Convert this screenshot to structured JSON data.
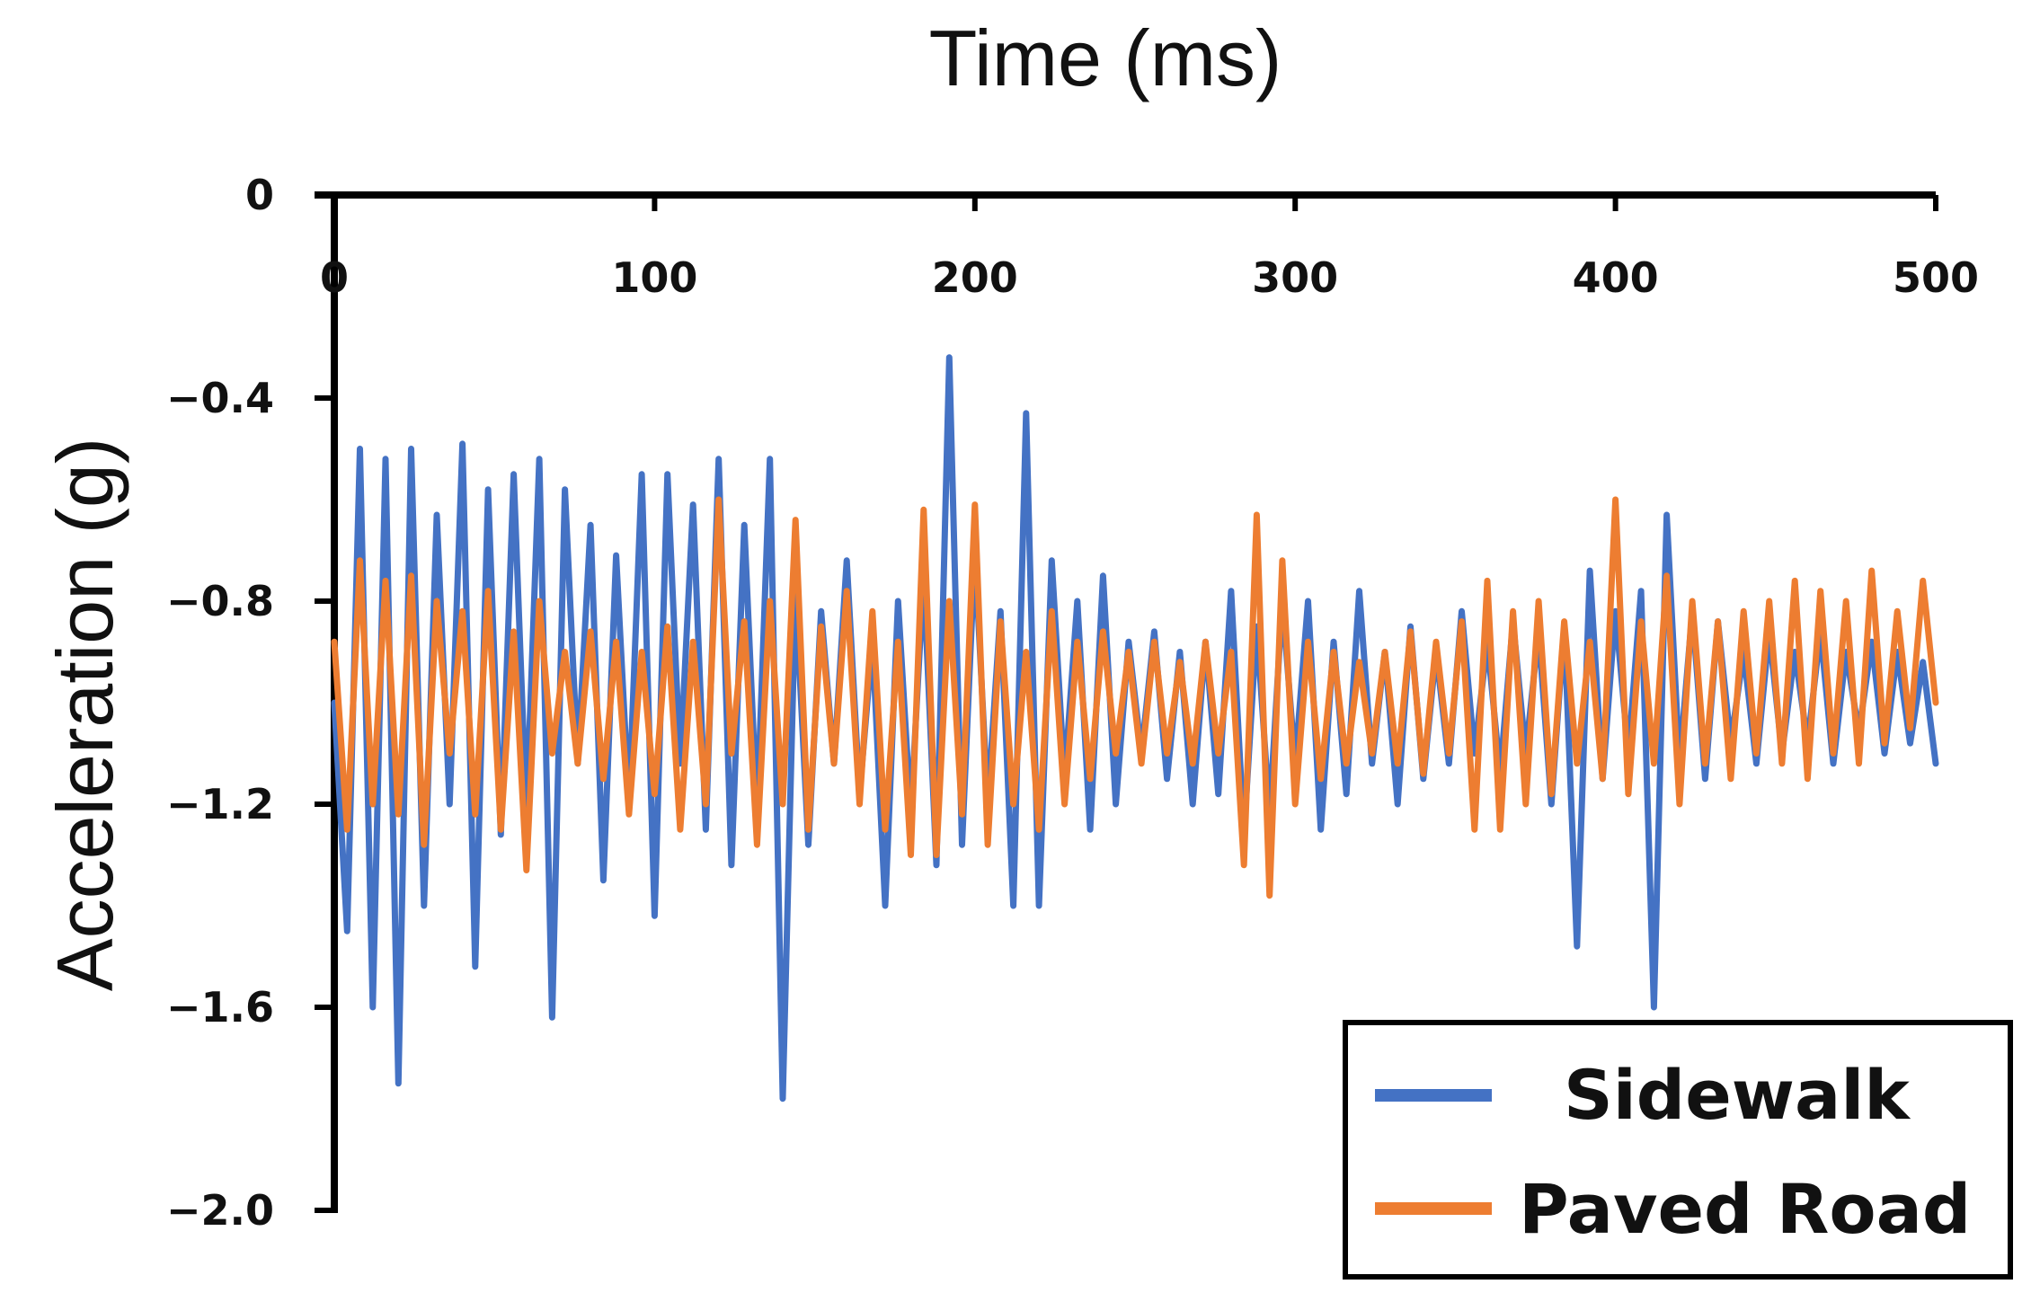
{
  "chart_data": {
    "type": "line",
    "title": "",
    "xlabel": "Time (ms)",
    "ylabel": "Acceleration (g)",
    "xlim": [
      0,
      500
    ],
    "ylim": [
      -2.0,
      0
    ],
    "x_axis_position": "top",
    "xticks": [
      0,
      100,
      200,
      300,
      400,
      500
    ],
    "xtick_labels": [
      "0",
      "100",
      "200",
      "300",
      "400",
      "500"
    ],
    "yticks": [
      0,
      -0.4,
      -0.8,
      -1.2,
      -1.6,
      -2.0
    ],
    "ytick_labels": [
      "0",
      "−0.4",
      "−0.8",
      "−1.2",
      "−1.6",
      "−2.0"
    ],
    "grid": false,
    "legend_position": "bottom-right",
    "series": [
      {
        "name": "Sidewalk",
        "color": "#4472C4",
        "x": [
          0,
          4,
          8,
          12,
          16,
          20,
          24,
          28,
          32,
          36,
          40,
          44,
          48,
          52,
          56,
          60,
          64,
          68,
          72,
          76,
          80,
          84,
          88,
          92,
          96,
          100,
          104,
          108,
          112,
          116,
          120,
          124,
          128,
          132,
          136,
          140,
          144,
          148,
          152,
          156,
          160,
          164,
          168,
          172,
          176,
          180,
          184,
          188,
          192,
          196,
          200,
          204,
          208,
          212,
          216,
          220,
          224,
          228,
          232,
          236,
          240,
          244,
          248,
          252,
          256,
          260,
          264,
          268,
          272,
          276,
          280,
          284,
          288,
          292,
          296,
          300,
          304,
          308,
          312,
          316,
          320,
          324,
          328,
          332,
          336,
          340,
          344,
          348,
          352,
          356,
          360,
          364,
          368,
          372,
          376,
          380,
          384,
          388,
          392,
          396,
          400,
          404,
          408,
          412,
          416,
          420,
          424,
          428,
          432,
          436,
          440,
          444,
          448,
          452,
          456,
          460,
          464,
          468,
          472,
          476,
          480,
          484,
          488,
          492,
          496,
          500
        ],
        "values": [
          -1.0,
          -1.45,
          -0.5,
          -1.6,
          -0.52,
          -1.75,
          -0.5,
          -1.4,
          -0.63,
          -1.2,
          -0.49,
          -1.52,
          -0.58,
          -1.26,
          -0.55,
          -1.22,
          -0.52,
          -1.62,
          -0.58,
          -1.12,
          -0.65,
          -1.35,
          -0.71,
          -1.2,
          -0.55,
          -1.42,
          -0.55,
          -1.12,
          -0.61,
          -1.25,
          -0.52,
          -1.32,
          -0.65,
          -1.22,
          -0.52,
          -1.78,
          -0.78,
          -1.28,
          -0.82,
          -1.12,
          -0.72,
          -1.18,
          -0.88,
          -1.4,
          -0.8,
          -1.22,
          -0.75,
          -1.32,
          -0.32,
          -1.28,
          -0.7,
          -1.2,
          -0.82,
          -1.4,
          -0.43,
          -1.4,
          -0.72,
          -1.15,
          -0.8,
          -1.25,
          -0.75,
          -1.2,
          -0.88,
          -1.1,
          -0.86,
          -1.15,
          -0.9,
          -1.2,
          -0.88,
          -1.18,
          -0.78,
          -1.26,
          -0.85,
          -1.22,
          -0.8,
          -1.12,
          -0.8,
          -1.25,
          -0.88,
          -1.18,
          -0.78,
          -1.12,
          -0.9,
          -1.2,
          -0.85,
          -1.15,
          -0.9,
          -1.12,
          -0.82,
          -1.1,
          -0.88,
          -1.14,
          -0.84,
          -1.1,
          -0.86,
          -1.2,
          -0.85,
          -1.48,
          -0.74,
          -1.15,
          -0.82,
          -1.1,
          -0.78,
          -1.6,
          -0.63,
          -1.12,
          -0.82,
          -1.15,
          -0.84,
          -1.08,
          -0.9,
          -1.12,
          -0.86,
          -1.1,
          -0.9,
          -1.08,
          -0.86,
          -1.12,
          -0.9,
          -1.06,
          -0.88,
          -1.1,
          -0.9,
          -1.08,
          -0.92,
          -1.12
        ]
      },
      {
        "name": "Paved Road",
        "color": "#ED7D31",
        "x": [
          0,
          4,
          8,
          12,
          16,
          20,
          24,
          28,
          32,
          36,
          40,
          44,
          48,
          52,
          56,
          60,
          64,
          68,
          72,
          76,
          80,
          84,
          88,
          92,
          96,
          100,
          104,
          108,
          112,
          116,
          120,
          124,
          128,
          132,
          136,
          140,
          144,
          148,
          152,
          156,
          160,
          164,
          168,
          172,
          176,
          180,
          184,
          188,
          192,
          196,
          200,
          204,
          208,
          212,
          216,
          220,
          224,
          228,
          232,
          236,
          240,
          244,
          248,
          252,
          256,
          260,
          264,
          268,
          272,
          276,
          280,
          284,
          288,
          292,
          296,
          300,
          304,
          308,
          312,
          316,
          320,
          324,
          328,
          332,
          336,
          340,
          344,
          348,
          352,
          356,
          360,
          364,
          368,
          372,
          376,
          380,
          384,
          388,
          392,
          396,
          400,
          404,
          408,
          412,
          416,
          420,
          424,
          428,
          432,
          436,
          440,
          444,
          448,
          452,
          456,
          460,
          464,
          468,
          472,
          476,
          480,
          484,
          488,
          492,
          496,
          500
        ],
        "values": [
          -0.88,
          -1.25,
          -0.72,
          -1.2,
          -0.76,
          -1.22,
          -0.75,
          -1.28,
          -0.8,
          -1.1,
          -0.82,
          -1.22,
          -0.78,
          -1.25,
          -0.86,
          -1.33,
          -0.8,
          -1.1,
          -0.9,
          -1.12,
          -0.86,
          -1.15,
          -0.88,
          -1.22,
          -0.9,
          -1.18,
          -0.85,
          -1.25,
          -0.88,
          -1.2,
          -0.6,
          -1.1,
          -0.84,
          -1.28,
          -0.8,
          -1.2,
          -0.64,
          -1.25,
          -0.85,
          -1.12,
          -0.78,
          -1.2,
          -0.82,
          -1.25,
          -0.88,
          -1.3,
          -0.62,
          -1.3,
          -0.8,
          -1.22,
          -0.61,
          -1.28,
          -0.84,
          -1.2,
          -0.9,
          -1.25,
          -0.82,
          -1.2,
          -0.88,
          -1.15,
          -0.86,
          -1.1,
          -0.9,
          -1.12,
          -0.88,
          -1.1,
          -0.92,
          -1.12,
          -0.88,
          -1.1,
          -0.9,
          -1.32,
          -0.63,
          -1.38,
          -0.72,
          -1.2,
          -0.88,
          -1.15,
          -0.9,
          -1.12,
          -0.92,
          -1.1,
          -0.9,
          -1.12,
          -0.86,
          -1.14,
          -0.88,
          -1.1,
          -0.84,
          -1.25,
          -0.76,
          -1.25,
          -0.82,
          -1.2,
          -0.8,
          -1.18,
          -0.84,
          -1.12,
          -0.88,
          -1.15,
          -0.6,
          -1.18,
          -0.84,
          -1.12,
          -0.75,
          -1.2,
          -0.8,
          -1.12,
          -0.84,
          -1.15,
          -0.82,
          -1.1,
          -0.8,
          -1.12,
          -0.76,
          -1.15,
          -0.78,
          -1.1,
          -0.8,
          -1.12,
          -0.74,
          -1.08,
          -0.82,
          -1.05,
          -0.76,
          -1.0
        ]
      }
    ]
  }
}
